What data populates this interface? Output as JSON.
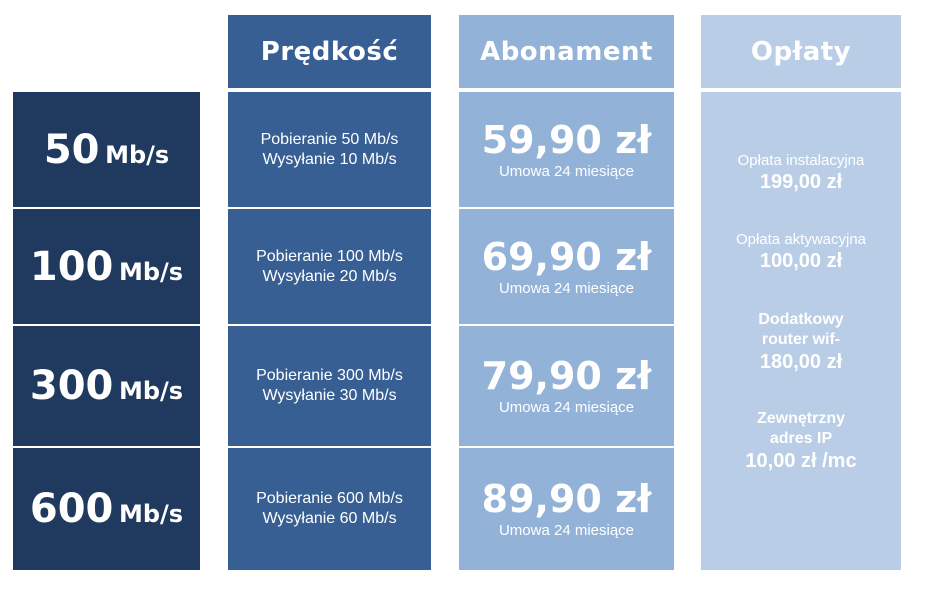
{
  "headers": {
    "predkosc": "Prędkość",
    "abonament": "Abonament",
    "oplaty": "Opłaty"
  },
  "plans": [
    {
      "speed_num": "50",
      "speed_unit": "Mb/s",
      "download": "Pobieranie 50 Mb/s",
      "upload": "Wysyłanie 10 Mb/s",
      "price": "59,90 zł",
      "term": "Umowa 24 miesiące"
    },
    {
      "speed_num": "100",
      "speed_unit": "Mb/s",
      "download": "Pobieranie 100 Mb/s",
      "upload": "Wysyłanie 20 Mb/s",
      "price": "69,90 zł",
      "term": "Umowa 24 miesiące"
    },
    {
      "speed_num": "300",
      "speed_unit": "Mb/s",
      "download": "Pobieranie 300 Mb/s",
      "upload": "Wysyłanie 30 Mb/s",
      "price": "79,90 zł",
      "term": "Umowa 24 miesiące"
    },
    {
      "speed_num": "600",
      "speed_unit": "Mb/s",
      "download": "Pobieranie 600 Mb/s",
      "upload": "Wysyłanie 60 Mb/s",
      "price": "89,90 zł",
      "term": "Umowa 24 miesiące"
    }
  ],
  "fees": [
    {
      "label": "Opłata instalacyjna",
      "value": "199,00 zł"
    },
    {
      "label": "Opłata aktywacyjna",
      "value": "100,00 zł"
    },
    {
      "label_line1": "Dodatkowy",
      "label_line2": "router wif-",
      "value": "180,00 zł"
    },
    {
      "label_line1": "Zewnętrzny",
      "label_line2": "adres IP",
      "value": "10,00 zł /mc"
    }
  ],
  "colors": {
    "speed_col": "#1f3a5e",
    "predkosc_col": "#375f93",
    "abonament_col": "#93b2d8",
    "oplaty_col": "#b9cde6"
  }
}
